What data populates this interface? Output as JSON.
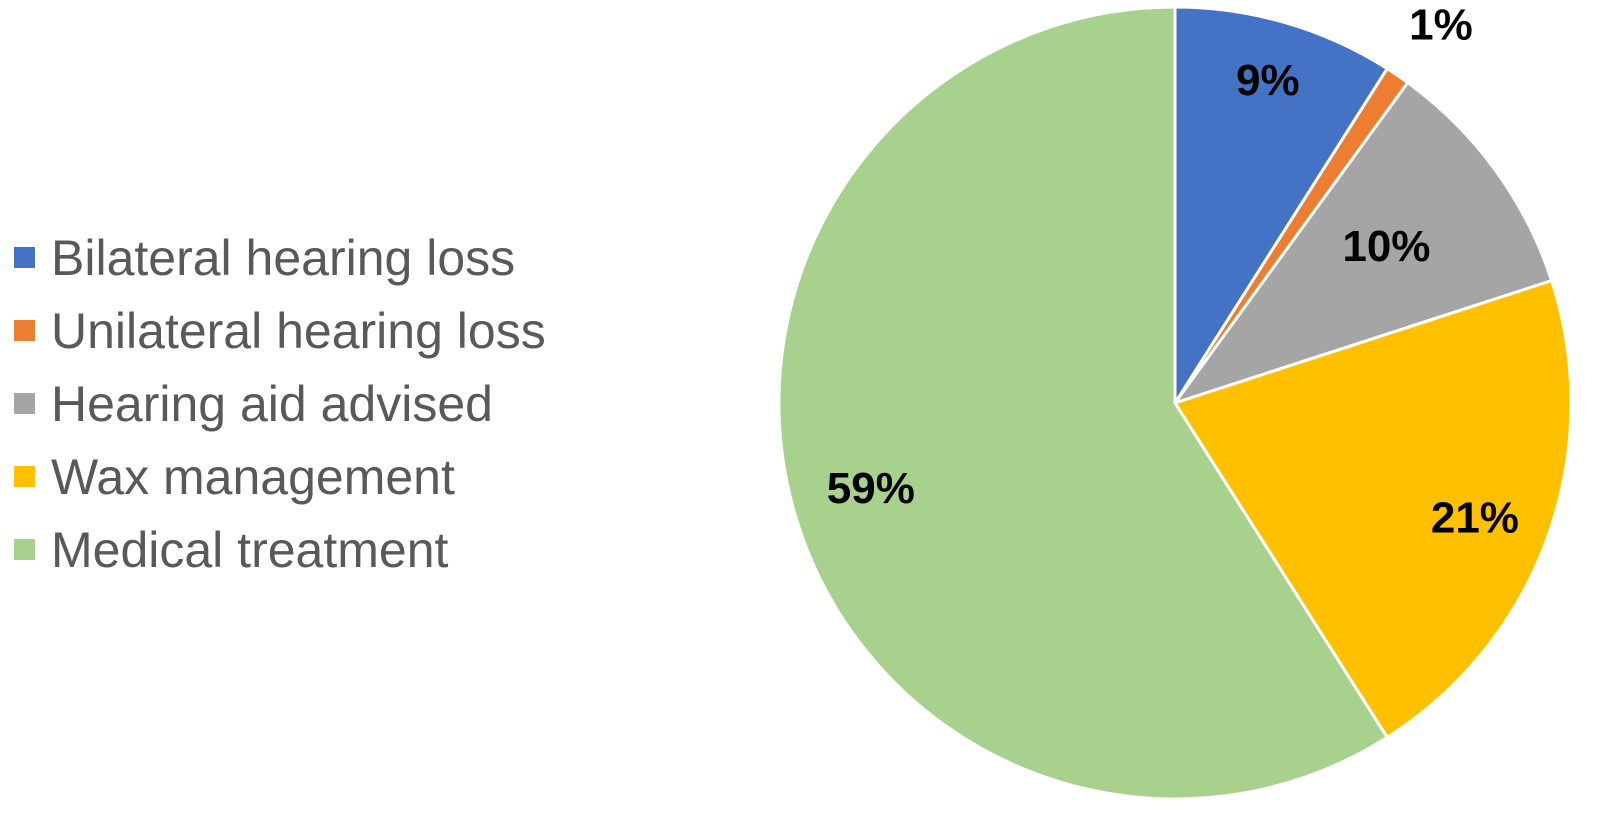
{
  "chart_data": {
    "type": "pie",
    "title": "",
    "categories": [
      "Bilateral hearing loss",
      "Unilateral hearing loss",
      "Hearing aid advised",
      "Wax management",
      "Medical treatment"
    ],
    "values": [
      9,
      1,
      10,
      21,
      59
    ],
    "labels": [
      "9%",
      "1%",
      "10%",
      "21%",
      "59%"
    ],
    "colors": [
      "#4472C4",
      "#ED7D31",
      "#A5A5A5",
      "#FFC000",
      "#A9D18E"
    ],
    "legend": {
      "placement": "left",
      "entries": [
        {
          "label": "Bilateral hearing loss",
          "color": "#4472C4"
        },
        {
          "label": "Unilateral hearing loss",
          "color": "#ED7D31"
        },
        {
          "label": "Hearing aid advised",
          "color": "#A5A5A5"
        },
        {
          "label": "Wax management",
          "color": "#FFC000"
        },
        {
          "label": "Medical treatment",
          "color": "#A9D18E"
        }
      ]
    }
  }
}
